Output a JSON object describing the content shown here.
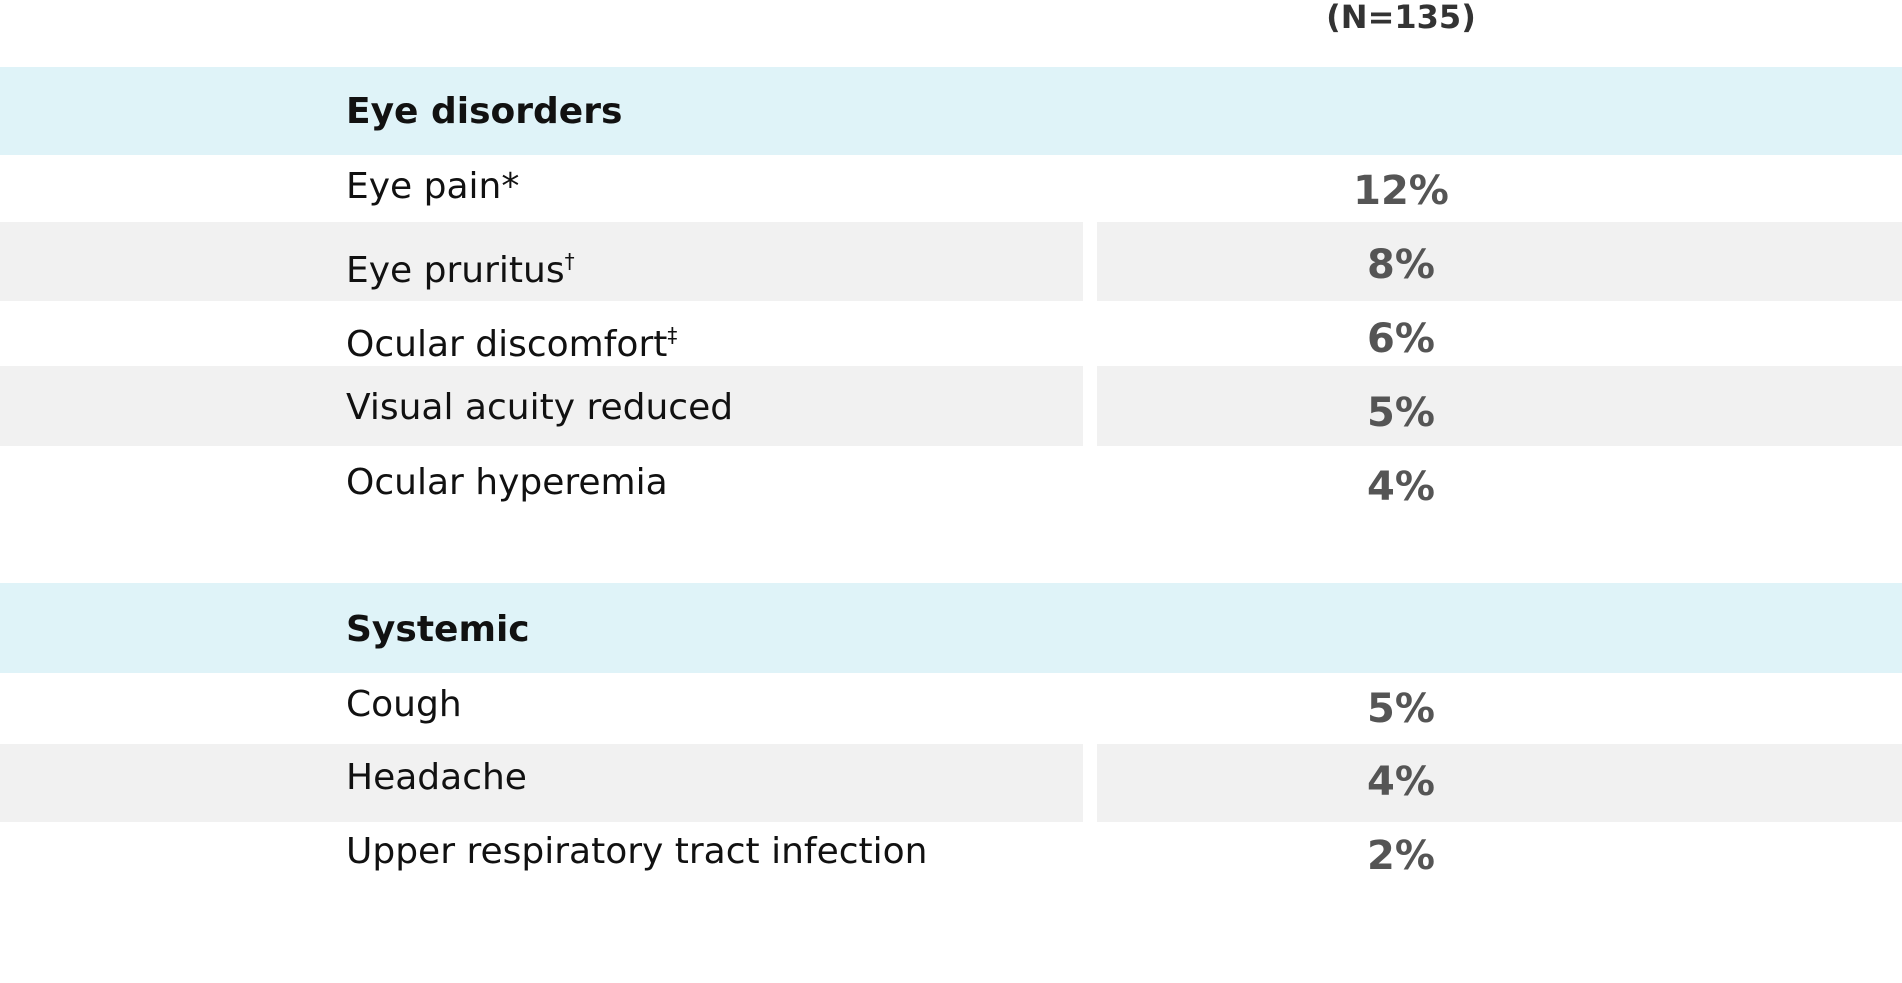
{
  "header": {
    "n": "(N=135)"
  },
  "sections": [
    {
      "title": "Eye disorders",
      "rows": [
        {
          "label": "Eye pain",
          "mark": "*",
          "value": "12%"
        },
        {
          "label": "Eye pruritus",
          "mark": "†",
          "value": "8%"
        },
        {
          "label": "Ocular discomfort",
          "mark": "‡",
          "value": "6%"
        },
        {
          "label": "Visual acuity reduced",
          "value": "5%"
        },
        {
          "label": "Ocular hyperemia",
          "value": "4%"
        }
      ]
    },
    {
      "title": "Systemic",
      "rows": [
        {
          "label": "Cough",
          "value": "5%"
        },
        {
          "label": "Headache",
          "value": "4%"
        },
        {
          "label": "Upper respiratory tract infection",
          "value": "2%"
        }
      ]
    }
  ]
}
